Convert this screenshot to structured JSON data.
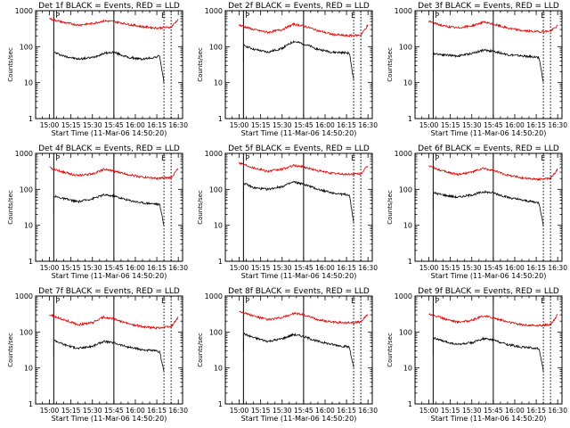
{
  "page": {
    "background": "#ffffff"
  },
  "colors": {
    "events": "#000000",
    "lld": "#e00000",
    "axes": "#000000"
  },
  "markers": {
    "p_label": "P",
    "e_label": "E"
  },
  "chart_data": [
    {
      "type": "line",
      "title": "Det 1f BLACK = Events, RED = LLD",
      "xlabel": "Start Time (11-Mar-06 14:50:20)",
      "ylabel": "Counts/sec",
      "x_ticks": [
        "15:00",
        "15:15",
        "15:30",
        "15:45",
        "16:00",
        "16:15",
        "16:30"
      ],
      "y_ticks": [
        "1",
        "10",
        "100",
        "1000"
      ],
      "ylim": [
        1,
        1000
      ],
      "y_scale": "log",
      "vlines_solid": [
        "15:03",
        "15:45"
      ],
      "vlines_dotted": [
        "16:20",
        "16:25"
      ],
      "series": [
        {
          "name": "Events",
          "color": "#000000",
          "x": [
            "15:03",
            "15:10",
            "15:20",
            "15:30",
            "15:38",
            "15:45",
            "15:55",
            "16:05",
            "16:13",
            "16:17",
            "16:20"
          ],
          "values": [
            70,
            55,
            45,
            50,
            65,
            70,
            50,
            45,
            50,
            55,
            10
          ]
        },
        {
          "name": "LLD",
          "color": "#e00000",
          "x": [
            "15:00",
            "15:10",
            "15:20",
            "15:30",
            "15:38",
            "15:45",
            "15:55",
            "16:05",
            "16:15",
            "16:25",
            "16:30"
          ],
          "values": [
            600,
            470,
            400,
            440,
            520,
            500,
            420,
            360,
            330,
            350,
            580
          ]
        }
      ]
    },
    {
      "type": "line",
      "title": "Det 2f BLACK = Events, RED = LLD",
      "xlabel": "Start Time (11-Mar-06 14:50:20)",
      "ylabel": "Counts/sec",
      "x_ticks": [
        "15:00",
        "15:15",
        "15:30",
        "15:45",
        "16:00",
        "16:15",
        "16:30"
      ],
      "y_ticks": [
        "1",
        "10",
        "100",
        "1000"
      ],
      "ylim": [
        1,
        1000
      ],
      "y_scale": "log",
      "vlines_solid": [
        "15:03",
        "15:45"
      ],
      "vlines_dotted": [
        "16:20",
        "16:25"
      ],
      "series": [
        {
          "name": "Events",
          "color": "#000000",
          "x": [
            "15:03",
            "15:10",
            "15:20",
            "15:30",
            "15:38",
            "15:45",
            "15:55",
            "16:05",
            "16:13",
            "16:17",
            "16:20"
          ],
          "values": [
            110,
            85,
            70,
            90,
            140,
            120,
            85,
            70,
            68,
            66,
            12
          ]
        },
        {
          "name": "LLD",
          "color": "#e00000",
          "x": [
            "15:00",
            "15:10",
            "15:20",
            "15:30",
            "15:38",
            "15:45",
            "15:55",
            "16:05",
            "16:15",
            "16:25",
            "16:30"
          ],
          "values": [
            400,
            300,
            250,
            300,
            420,
            380,
            280,
            220,
            200,
            210,
            400
          ]
        }
      ]
    },
    {
      "type": "line",
      "title": "Det 3f BLACK = Events, RED = LLD",
      "xlabel": "Start Time (11-Mar-06 14:50:20)",
      "ylabel": "Counts/sec",
      "x_ticks": [
        "15:00",
        "15:15",
        "15:30",
        "15:45",
        "16:00",
        "16:15",
        "16:30"
      ],
      "y_ticks": [
        "1",
        "10",
        "100",
        "1000"
      ],
      "ylim": [
        1,
        1000
      ],
      "y_scale": "log",
      "vlines_solid": [
        "15:03",
        "15:45"
      ],
      "vlines_dotted": [
        "16:20",
        "16:25"
      ],
      "series": [
        {
          "name": "Events",
          "color": "#000000",
          "x": [
            "15:03",
            "15:10",
            "15:20",
            "15:30",
            "15:38",
            "15:45",
            "15:55",
            "16:05",
            "16:13",
            "16:17",
            "16:20"
          ],
          "values": [
            65,
            60,
            55,
            65,
            80,
            75,
            60,
            55,
            52,
            50,
            10
          ]
        },
        {
          "name": "LLD",
          "color": "#e00000",
          "x": [
            "15:00",
            "15:10",
            "15:20",
            "15:30",
            "15:38",
            "15:45",
            "15:55",
            "16:05",
            "16:15",
            "16:25",
            "16:30"
          ],
          "values": [
            500,
            380,
            330,
            380,
            480,
            420,
            330,
            280,
            260,
            270,
            380
          ]
        }
      ]
    },
    {
      "type": "line",
      "title": "Det 4f BLACK = Events, RED = LLD",
      "xlabel": "Start Time (11-Mar-06 14:50:20)",
      "ylabel": "Counts/sec",
      "x_ticks": [
        "15:00",
        "15:15",
        "15:30",
        "15:45",
        "16:00",
        "16:15",
        "16:30"
      ],
      "y_ticks": [
        "1",
        "10",
        "100",
        "1000"
      ],
      "ylim": [
        1,
        1000
      ],
      "y_scale": "log",
      "vlines_solid": [
        "15:03",
        "15:45"
      ],
      "vlines_dotted": [
        "16:20",
        "16:25"
      ],
      "series": [
        {
          "name": "Events",
          "color": "#000000",
          "x": [
            "15:03",
            "15:10",
            "15:20",
            "15:30",
            "15:38",
            "15:45",
            "15:55",
            "16:05",
            "16:13",
            "16:17",
            "16:20"
          ],
          "values": [
            65,
            55,
            45,
            55,
            70,
            65,
            50,
            42,
            40,
            38,
            10
          ]
        },
        {
          "name": "LLD",
          "color": "#e00000",
          "x": [
            "15:00",
            "15:10",
            "15:20",
            "15:30",
            "15:38",
            "15:45",
            "15:55",
            "16:05",
            "16:15",
            "16:25",
            "16:30"
          ],
          "values": [
            400,
            300,
            240,
            270,
            360,
            320,
            260,
            220,
            200,
            210,
            380
          ]
        }
      ]
    },
    {
      "type": "line",
      "title": "Det 5f BLACK = Events, RED = LLD",
      "xlabel": "Start Time (11-Mar-06 14:50:20)",
      "ylabel": "Counts/sec",
      "x_ticks": [
        "15:00",
        "15:15",
        "15:30",
        "15:45",
        "16:00",
        "16:15",
        "16:30"
      ],
      "y_ticks": [
        "1",
        "10",
        "100",
        "1000"
      ],
      "ylim": [
        1,
        1000
      ],
      "y_scale": "log",
      "vlines_solid": [
        "15:03",
        "15:45"
      ],
      "vlines_dotted": [
        "16:20",
        "16:25"
      ],
      "series": [
        {
          "name": "Events",
          "color": "#000000",
          "x": [
            "15:03",
            "15:10",
            "15:20",
            "15:30",
            "15:38",
            "15:45",
            "15:55",
            "16:05",
            "16:13",
            "16:17",
            "16:20"
          ],
          "values": [
            150,
            110,
            100,
            120,
            160,
            140,
            100,
            80,
            72,
            70,
            12
          ]
        },
        {
          "name": "LLD",
          "color": "#e00000",
          "x": [
            "15:00",
            "15:10",
            "15:20",
            "15:30",
            "15:38",
            "15:45",
            "15:55",
            "16:05",
            "16:15",
            "16:25",
            "16:30"
          ],
          "values": [
            550,
            400,
            320,
            360,
            460,
            420,
            330,
            280,
            260,
            270,
            450
          ]
        }
      ]
    },
    {
      "type": "line",
      "title": "Det 6f BLACK = Events, RED = LLD",
      "xlabel": "Start Time (11-Mar-06 14:50:20)",
      "ylabel": "Counts/sec",
      "x_ticks": [
        "15:00",
        "15:15",
        "15:30",
        "15:45",
        "16:00",
        "16:15",
        "16:30"
      ],
      "y_ticks": [
        "1",
        "10",
        "100",
        "1000"
      ],
      "ylim": [
        1,
        1000
      ],
      "y_scale": "log",
      "vlines_solid": [
        "15:03",
        "15:45"
      ],
      "vlines_dotted": [
        "16:20",
        "16:25"
      ],
      "series": [
        {
          "name": "Events",
          "color": "#000000",
          "x": [
            "15:03",
            "15:10",
            "15:20",
            "15:30",
            "15:38",
            "15:45",
            "15:55",
            "16:05",
            "16:13",
            "16:17",
            "16:20"
          ],
          "values": [
            80,
            70,
            60,
            70,
            85,
            80,
            60,
            50,
            45,
            42,
            10
          ]
        },
        {
          "name": "LLD",
          "color": "#e00000",
          "x": [
            "15:00",
            "15:10",
            "15:20",
            "15:30",
            "15:38",
            "15:45",
            "15:55",
            "16:05",
            "16:15",
            "16:25",
            "16:30"
          ],
          "values": [
            450,
            320,
            260,
            300,
            380,
            330,
            250,
            210,
            190,
            200,
            360
          ]
        }
      ]
    },
    {
      "type": "line",
      "title": "Det 7f BLACK = Events, RED = LLD",
      "xlabel": "Start Time (11-Mar-06 14:50:20)",
      "ylabel": "Counts/sec",
      "x_ticks": [
        "15:00",
        "15:15",
        "15:30",
        "15:45",
        "16:00",
        "16:15",
        "16:30"
      ],
      "y_ticks": [
        "1",
        "10",
        "100",
        "1000"
      ],
      "ylim": [
        1,
        1000
      ],
      "y_scale": "log",
      "vlines_solid": [
        "15:03",
        "15:45"
      ],
      "vlines_dotted": [
        "16:20",
        "16:25"
      ],
      "series": [
        {
          "name": "Events",
          "color": "#000000",
          "x": [
            "15:03",
            "15:10",
            "15:20",
            "15:30",
            "15:38",
            "15:45",
            "15:55",
            "16:05",
            "16:13",
            "16:17",
            "16:20"
          ],
          "values": [
            60,
            45,
            35,
            40,
            55,
            50,
            38,
            32,
            30,
            28,
            8
          ]
        },
        {
          "name": "LLD",
          "color": "#e00000",
          "x": [
            "15:00",
            "15:10",
            "15:20",
            "15:30",
            "15:38",
            "15:45",
            "15:55",
            "16:05",
            "16:15",
            "16:25",
            "16:30"
          ],
          "values": [
            300,
            220,
            160,
            180,
            260,
            230,
            170,
            140,
            130,
            140,
            260
          ]
        }
      ]
    },
    {
      "type": "line",
      "title": "Det 8f BLACK = Events, RED = LLD",
      "xlabel": "Start Time (11-Mar-06 14:50:20)",
      "ylabel": "Counts/sec",
      "x_ticks": [
        "15:00",
        "15:15",
        "15:30",
        "15:45",
        "16:00",
        "16:15",
        "16:30"
      ],
      "y_ticks": [
        "1",
        "10",
        "100",
        "1000"
      ],
      "ylim": [
        1,
        1000
      ],
      "y_scale": "log",
      "vlines_solid": [
        "15:03",
        "15:45"
      ],
      "vlines_dotted": [
        "16:20",
        "16:25"
      ],
      "series": [
        {
          "name": "Events",
          "color": "#000000",
          "x": [
            "15:03",
            "15:10",
            "15:20",
            "15:30",
            "15:38",
            "15:45",
            "15:55",
            "16:05",
            "16:13",
            "16:17",
            "16:20"
          ],
          "values": [
            90,
            70,
            55,
            65,
            85,
            75,
            55,
            45,
            40,
            38,
            10
          ]
        },
        {
          "name": "LLD",
          "color": "#e00000",
          "x": [
            "15:00",
            "15:10",
            "15:20",
            "15:30",
            "15:38",
            "15:45",
            "15:55",
            "16:05",
            "16:15",
            "16:25",
            "16:30"
          ],
          "values": [
            380,
            280,
            220,
            250,
            330,
            300,
            220,
            190,
            180,
            190,
            320
          ]
        }
      ]
    },
    {
      "type": "line",
      "title": "Det 9f BLACK = Events, RED = LLD",
      "xlabel": "Start Time (11-Mar-06 14:50:20)",
      "ylabel": "Counts/sec",
      "x_ticks": [
        "15:00",
        "15:15",
        "15:30",
        "15:45",
        "16:00",
        "16:15",
        "16:30"
      ],
      "y_ticks": [
        "1",
        "10",
        "100",
        "1000"
      ],
      "ylim": [
        1,
        1000
      ],
      "y_scale": "log",
      "vlines_solid": [
        "15:03",
        "15:45"
      ],
      "vlines_dotted": [
        "16:20",
        "16:25"
      ],
      "series": [
        {
          "name": "Events",
          "color": "#000000",
          "x": [
            "15:03",
            "15:10",
            "15:20",
            "15:30",
            "15:38",
            "15:45",
            "15:55",
            "16:05",
            "16:13",
            "16:17",
            "16:20"
          ],
          "values": [
            70,
            55,
            45,
            50,
            65,
            60,
            45,
            38,
            36,
            34,
            8
          ]
        },
        {
          "name": "LLD",
          "color": "#e00000",
          "x": [
            "15:00",
            "15:10",
            "15:20",
            "15:30",
            "15:38",
            "15:45",
            "15:55",
            "16:05",
            "16:15",
            "16:25",
            "16:30"
          ],
          "values": [
            320,
            240,
            190,
            210,
            280,
            250,
            190,
            160,
            150,
            160,
            300
          ]
        }
      ]
    }
  ]
}
